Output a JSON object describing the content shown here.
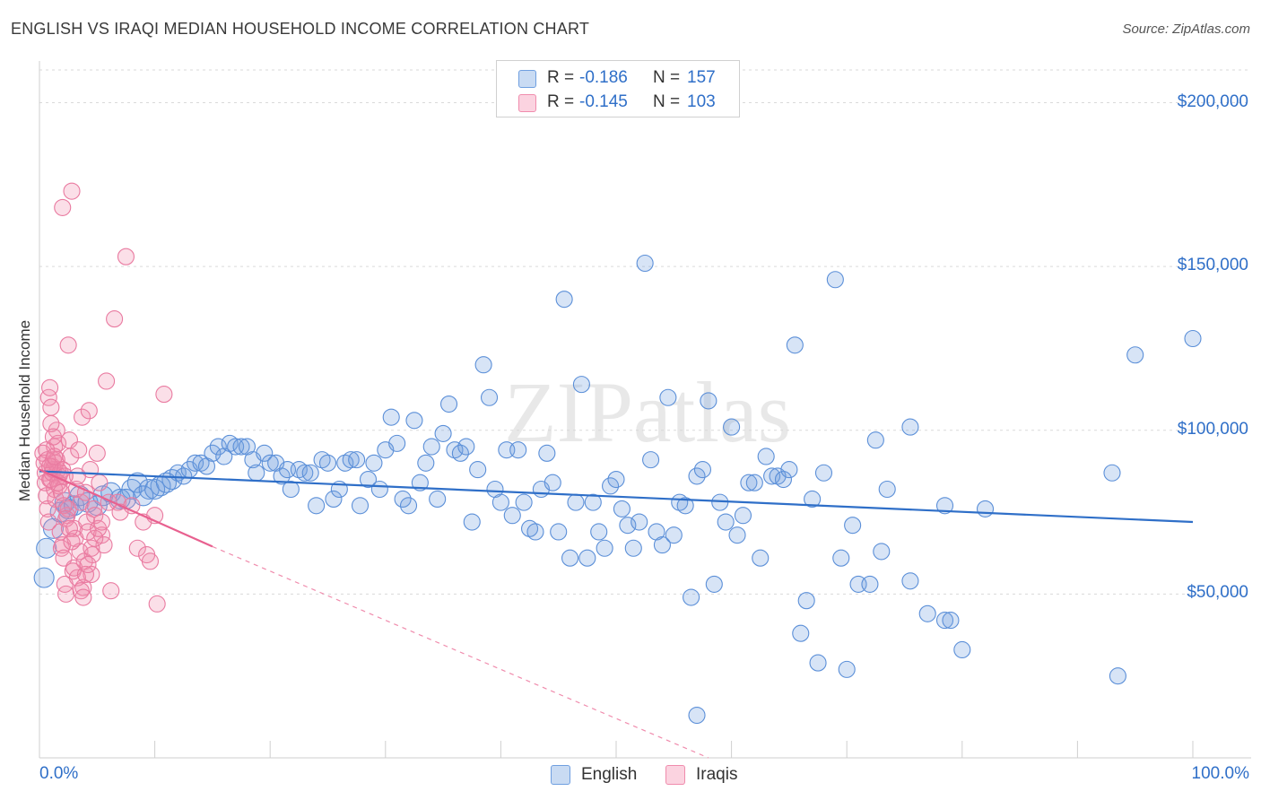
{
  "header": {
    "title": "ENGLISH VS IRAQI MEDIAN HOUSEHOLD INCOME CORRELATION CHART",
    "source": "Source: ZipAtlas.com"
  },
  "watermark": "ZIPatlas",
  "stats_box": {
    "rows": [
      {
        "r_label": "R =",
        "r_value": "-0.186",
        "n_label": "N =",
        "n_value": "157",
        "color": "#6f9fe0"
      },
      {
        "r_label": "R =",
        "r_value": "-0.145",
        "n_label": "N =",
        "n_value": "103",
        "color": "#f08cad"
      }
    ]
  },
  "legend": {
    "items": [
      {
        "label": "English",
        "color": "#6f9fe0"
      },
      {
        "label": "Iraqis",
        "color": "#f08cad"
      }
    ]
  },
  "chart_data": {
    "type": "scatter",
    "title": "ENGLISH VS IRAQI MEDIAN HOUSEHOLD INCOME CORRELATION CHART",
    "xlabel": "",
    "ylabel": "Median Household Income",
    "xlim": [
      0,
      100
    ],
    "ylim": [
      0,
      210000
    ],
    "x_tick_labels": [
      "0.0%",
      "100.0%"
    ],
    "y_tick_labels": [
      "$50,000",
      "$100,000",
      "$150,000",
      "$200,000"
    ],
    "y_ticks": [
      50000,
      100000,
      150000,
      200000
    ],
    "grid": true,
    "legend_position": "bottom-center",
    "series": [
      {
        "name": "English",
        "color": "#6f9fe0",
        "stroke": "#5b8fd8",
        "trend": {
          "x": [
            0,
            100
          ],
          "y": [
            87500,
            72000
          ],
          "color": "#2f6fc8"
        },
        "points": [
          [
            0.4,
            55000
          ],
          [
            0.6,
            64000
          ],
          [
            1.2,
            70000
          ],
          [
            1.8,
            75000
          ],
          [
            2.2,
            78000
          ],
          [
            2.5,
            76000
          ],
          [
            3.0,
            77000
          ],
          [
            3.5,
            80000
          ],
          [
            4.2,
            78000
          ],
          [
            5.0,
            77000
          ],
          [
            5.5,
            80000
          ],
          [
            6.2,
            81000
          ],
          [
            7.0,
            79000
          ],
          [
            8.0,
            82000
          ],
          [
            8.5,
            84000
          ],
          [
            9.5,
            82000
          ],
          [
            10.5,
            83000
          ],
          [
            11.5,
            85000
          ],
          [
            12.0,
            87000
          ],
          [
            12.5,
            86000
          ],
          [
            13.0,
            88000
          ],
          [
            13.5,
            90000
          ],
          [
            14.0,
            90000
          ],
          [
            14.5,
            89000
          ],
          [
            15.0,
            93000
          ],
          [
            15.5,
            95000
          ],
          [
            16.0,
            92000
          ],
          [
            16.5,
            96000
          ],
          [
            17.0,
            95000
          ],
          [
            17.5,
            95000
          ],
          [
            18.0,
            95000
          ],
          [
            18.5,
            91000
          ],
          [
            18.8,
            87000
          ],
          [
            19.5,
            93000
          ],
          [
            20.0,
            90000
          ],
          [
            20.5,
            90000
          ],
          [
            21.0,
            86000
          ],
          [
            21.5,
            88000
          ],
          [
            21.8,
            82000
          ],
          [
            22.5,
            88000
          ],
          [
            23.0,
            87000
          ],
          [
            23.5,
            87000
          ],
          [
            24.0,
            77000
          ],
          [
            24.5,
            91000
          ],
          [
            25.0,
            90000
          ],
          [
            25.5,
            79000
          ],
          [
            26.0,
            82000
          ],
          [
            26.5,
            90000
          ],
          [
            27.0,
            91000
          ],
          [
            27.5,
            91000
          ],
          [
            27.8,
            77000
          ],
          [
            28.5,
            85000
          ],
          [
            29.0,
            90000
          ],
          [
            29.5,
            82000
          ],
          [
            30.0,
            94000
          ],
          [
            30.5,
            104000
          ],
          [
            31.0,
            96000
          ],
          [
            31.5,
            79000
          ],
          [
            32.0,
            77000
          ],
          [
            32.5,
            103000
          ],
          [
            33.0,
            84000
          ],
          [
            33.5,
            90000
          ],
          [
            34.0,
            95000
          ],
          [
            34.5,
            79000
          ],
          [
            35.0,
            99000
          ],
          [
            35.5,
            108000
          ],
          [
            36.0,
            94000
          ],
          [
            36.5,
            93000
          ],
          [
            37.0,
            95000
          ],
          [
            37.5,
            72000
          ],
          [
            38.0,
            88000
          ],
          [
            38.5,
            120000
          ],
          [
            39.0,
            110000
          ],
          [
            39.5,
            82000
          ],
          [
            40.0,
            78000
          ],
          [
            40.5,
            94000
          ],
          [
            41.0,
            74000
          ],
          [
            41.5,
            94000
          ],
          [
            42.0,
            78000
          ],
          [
            42.5,
            70000
          ],
          [
            43.0,
            69000
          ],
          [
            43.5,
            82000
          ],
          [
            44.0,
            93000
          ],
          [
            44.5,
            84000
          ],
          [
            45.0,
            69000
          ],
          [
            45.5,
            140000
          ],
          [
            46.0,
            61000
          ],
          [
            46.5,
            78000
          ],
          [
            47.0,
            114000
          ],
          [
            47.5,
            61000
          ],
          [
            48.0,
            78000
          ],
          [
            48.5,
            69000
          ],
          [
            49.0,
            64000
          ],
          [
            49.5,
            83000
          ],
          [
            50.0,
            85000
          ],
          [
            50.5,
            76000
          ],
          [
            51.0,
            71000
          ],
          [
            51.5,
            64000
          ],
          [
            52.0,
            72000
          ],
          [
            52.5,
            151000
          ],
          [
            53.0,
            91000
          ],
          [
            53.5,
            69000
          ],
          [
            54.0,
            65000
          ],
          [
            54.5,
            110000
          ],
          [
            55.0,
            68000
          ],
          [
            55.5,
            78000
          ],
          [
            56.0,
            77000
          ],
          [
            56.5,
            49000
          ],
          [
            57.0,
            86000
          ],
          [
            57.5,
            88000
          ],
          [
            58.0,
            109000
          ],
          [
            58.5,
            53000
          ],
          [
            59.0,
            78000
          ],
          [
            59.5,
            72000
          ],
          [
            60.0,
            101000
          ],
          [
            60.5,
            68000
          ],
          [
            61.0,
            74000
          ],
          [
            61.5,
            84000
          ],
          [
            62.0,
            84000
          ],
          [
            62.5,
            61000
          ],
          [
            63.0,
            92000
          ],
          [
            63.5,
            86000
          ],
          [
            64.0,
            86000
          ],
          [
            64.5,
            85000
          ],
          [
            65.0,
            88000
          ],
          [
            65.5,
            126000
          ],
          [
            66.0,
            38000
          ],
          [
            66.5,
            48000
          ],
          [
            67.0,
            79000
          ],
          [
            67.5,
            29000
          ],
          [
            68.0,
            87000
          ],
          [
            69.0,
            146000
          ],
          [
            69.5,
            61000
          ],
          [
            70.0,
            27000
          ],
          [
            70.5,
            71000
          ],
          [
            71.0,
            53000
          ],
          [
            72.0,
            53000
          ],
          [
            72.5,
            97000
          ],
          [
            73.0,
            63000
          ],
          [
            73.5,
            82000
          ],
          [
            75.5,
            54000
          ],
          [
            75.5,
            101000
          ],
          [
            77.0,
            44000
          ],
          [
            78.5,
            42000
          ],
          [
            79.0,
            42000
          ],
          [
            80.0,
            33000
          ],
          [
            82.0,
            76000
          ],
          [
            78.5,
            77000
          ],
          [
            57.0,
            13000
          ],
          [
            93.0,
            87000
          ],
          [
            93.5,
            25000
          ],
          [
            95.0,
            123000
          ],
          [
            100,
            128000
          ],
          [
            7.5,
            79000
          ],
          [
            9.0,
            80000
          ],
          [
            10.0,
            82000
          ],
          [
            11.0,
            84000
          ]
        ]
      },
      {
        "name": "Iraqis",
        "color": "#f08cad",
        "stroke": "#e97aa0",
        "trend": {
          "x": [
            0,
            15
          ],
          "y": [
            88000,
            64500
          ],
          "color": "#e8608f"
        },
        "trend_extension": {
          "x": [
            15,
            58
          ],
          "y": [
            64500,
            0
          ]
        },
        "points": [
          [
            0.3,
            93000
          ],
          [
            0.4,
            90000
          ],
          [
            0.5,
            87000
          ],
          [
            0.5,
            84000
          ],
          [
            0.6,
            80000
          ],
          [
            0.7,
            76000
          ],
          [
            0.8,
            72000
          ],
          [
            0.8,
            110000
          ],
          [
            0.9,
            113000
          ],
          [
            1.0,
            107000
          ],
          [
            1.0,
            85000
          ],
          [
            1.1,
            89000
          ],
          [
            1.2,
            91000
          ],
          [
            1.3,
            95000
          ],
          [
            1.3,
            82000
          ],
          [
            1.4,
            79000
          ],
          [
            1.5,
            100000
          ],
          [
            1.6,
            96000
          ],
          [
            1.6,
            88000
          ],
          [
            1.7,
            86000
          ],
          [
            1.8,
            69000
          ],
          [
            1.9,
            64000
          ],
          [
            2.0,
            168000
          ],
          [
            2.0,
            65000
          ],
          [
            2.1,
            61000
          ],
          [
            2.2,
            53000
          ],
          [
            2.3,
            50000
          ],
          [
            2.4,
            74000
          ],
          [
            2.5,
            76000
          ],
          [
            2.5,
            126000
          ],
          [
            2.6,
            97000
          ],
          [
            2.7,
            92000
          ],
          [
            2.8,
            173000
          ],
          [
            2.9,
            57000
          ],
          [
            3.0,
            70000
          ],
          [
            3.1,
            67000
          ],
          [
            3.2,
            82000
          ],
          [
            3.3,
            86000
          ],
          [
            3.4,
            94000
          ],
          [
            3.5,
            63000
          ],
          [
            3.6,
            78000
          ],
          [
            3.7,
            104000
          ],
          [
            3.8,
            52000
          ],
          [
            3.9,
            60000
          ],
          [
            4.0,
            81000
          ],
          [
            4.1,
            72000
          ],
          [
            4.2,
            69000
          ],
          [
            4.3,
            106000
          ],
          [
            4.4,
            88000
          ],
          [
            4.5,
            56000
          ],
          [
            4.6,
            62000
          ],
          [
            4.7,
            76000
          ],
          [
            4.8,
            74000
          ],
          [
            5.0,
            93000
          ],
          [
            5.2,
            84000
          ],
          [
            5.4,
            68000
          ],
          [
            5.6,
            65000
          ],
          [
            5.8,
            115000
          ],
          [
            6.0,
            78000
          ],
          [
            6.2,
            51000
          ],
          [
            6.5,
            134000
          ],
          [
            6.8,
            78000
          ],
          [
            7.0,
            75000
          ],
          [
            7.5,
            153000
          ],
          [
            8.0,
            77000
          ],
          [
            8.5,
            64000
          ],
          [
            9.0,
            72000
          ],
          [
            9.3,
            62000
          ],
          [
            9.6,
            60000
          ],
          [
            10.0,
            74000
          ],
          [
            10.2,
            47000
          ],
          [
            10.8,
            111000
          ],
          [
            0.9,
            85000
          ],
          [
            1.1,
            87000
          ],
          [
            1.2,
            88000
          ],
          [
            1.4,
            90000
          ],
          [
            1.5,
            91000
          ],
          [
            1.7,
            83000
          ],
          [
            1.8,
            87000
          ],
          [
            2.0,
            88000
          ],
          [
            2.2,
            86000
          ],
          [
            0.6,
            94000
          ],
          [
            0.7,
            91000
          ],
          [
            0.9,
            89000
          ],
          [
            1.3,
            92000
          ],
          [
            1.6,
            84000
          ],
          [
            1.9,
            81000
          ],
          [
            2.1,
            77000
          ],
          [
            2.3,
            73000
          ],
          [
            2.6,
            70000
          ],
          [
            2.8,
            66000
          ],
          [
            3.0,
            58000
          ],
          [
            3.3,
            55000
          ],
          [
            3.6,
            51000
          ],
          [
            3.8,
            49000
          ],
          [
            4.0,
            56000
          ],
          [
            4.2,
            59000
          ],
          [
            4.5,
            64000
          ],
          [
            4.8,
            67000
          ],
          [
            5.1,
            70000
          ],
          [
            5.4,
            72000
          ],
          [
            1.0,
            102000
          ],
          [
            1.2,
            98000
          ]
        ]
      }
    ]
  }
}
